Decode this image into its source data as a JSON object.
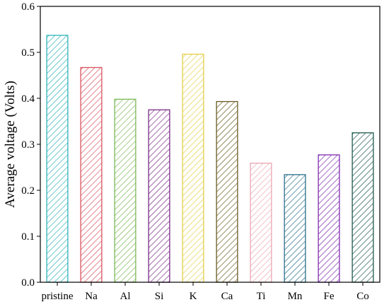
{
  "chart_data": {
    "type": "bar",
    "title": "",
    "xlabel": "",
    "ylabel": "Average voltage (Volts)",
    "ylim": [
      0,
      0.6
    ],
    "yticks": [
      "0.0",
      "0.1",
      "0.2",
      "0.3",
      "0.4",
      "0.5",
      "0.6"
    ],
    "categories": [
      "pristine",
      "Na",
      "Al",
      "Si",
      "K",
      "Ca",
      "Ti",
      "Mn",
      "Fe",
      "Co"
    ],
    "values": [
      0.537,
      0.467,
      0.398,
      0.375,
      0.496,
      0.393,
      0.259,
      0.234,
      0.277,
      0.325
    ],
    "fill_pattern": "diagonal-hatch",
    "colors": [
      "#2fb3b8",
      "#d9535f",
      "#7ab956",
      "#7a2b86",
      "#e2cf48",
      "#6a5c22",
      "#eba6b3",
      "#2a6f8a",
      "#7e2bb1",
      "#1f5a4f"
    ],
    "grid": false,
    "legend": "none"
  }
}
